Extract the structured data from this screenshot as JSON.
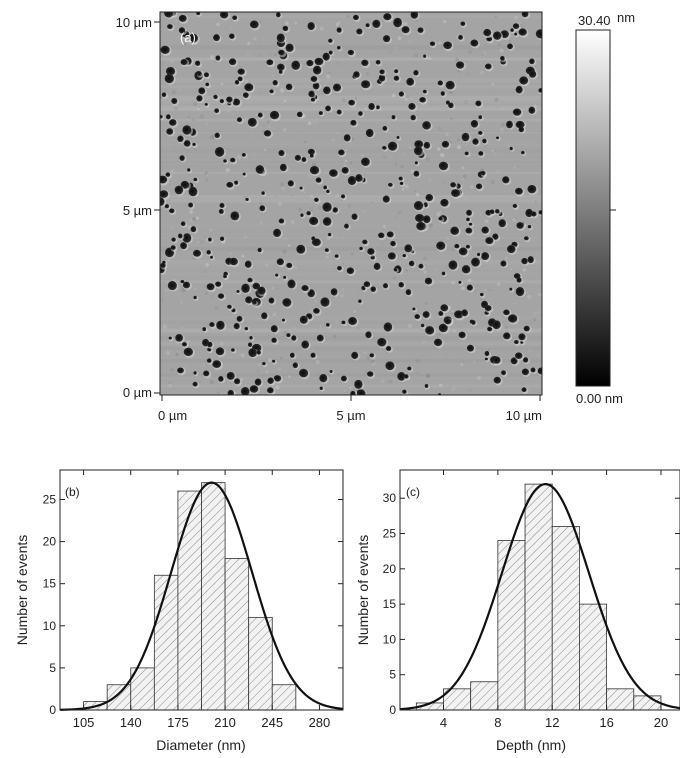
{
  "afm": {
    "panel_label": "(a)",
    "x_ticks": [
      "0 µm",
      "5 µm",
      "10 µm"
    ],
    "y_ticks": [
      "0 µm",
      "5 µm",
      "10 µm"
    ],
    "colorbar": {
      "max_value": "30.40",
      "max_unit": "nm",
      "min_label": "0.00 nm",
      "low_color": "#000000",
      "high_color": "#ffffff"
    }
  },
  "chart_data": [
    {
      "type": "bar",
      "panel_label": "(b)",
      "xlabel": "Diameter (nm)",
      "ylabel": "Number of events",
      "x_ticks": [
        105,
        140,
        175,
        210,
        245,
        280
      ],
      "y_ticks": [
        0,
        5,
        10,
        15,
        20,
        25
      ],
      "xlim": [
        87.5,
        297.5
      ],
      "ylim": [
        0,
        28.5
      ],
      "bins": [
        {
          "start": 105,
          "end": 122.5,
          "count": 1
        },
        {
          "start": 122.5,
          "end": 140,
          "count": 3
        },
        {
          "start": 140,
          "end": 157.5,
          "count": 5
        },
        {
          "start": 157.5,
          "end": 175,
          "count": 16
        },
        {
          "start": 175,
          "end": 192.5,
          "count": 26
        },
        {
          "start": 192.5,
          "end": 210,
          "count": 27
        },
        {
          "start": 210,
          "end": 227.5,
          "count": 18
        },
        {
          "start": 227.5,
          "end": 245,
          "count": 11
        },
        {
          "start": 245,
          "end": 262.5,
          "count": 3
        },
        {
          "start": 262.5,
          "end": 280,
          "count": 0
        }
      ],
      "fit": {
        "type": "gaussian",
        "amplitude": 27,
        "center": 200,
        "sigma": 30
      }
    },
    {
      "type": "bar",
      "panel_label": "(c)",
      "xlabel": "Depth (nm)",
      "ylabel": "Number of events",
      "x_ticks": [
        4,
        8,
        12,
        16,
        20
      ],
      "y_ticks": [
        0,
        5,
        10,
        15,
        20,
        25,
        30
      ],
      "xlim": [
        0.8,
        21.4
      ],
      "ylim": [
        0,
        34
      ],
      "bins": [
        {
          "start": 2,
          "end": 4,
          "count": 1
        },
        {
          "start": 4,
          "end": 6,
          "count": 3
        },
        {
          "start": 6,
          "end": 8,
          "count": 4
        },
        {
          "start": 8,
          "end": 10,
          "count": 24
        },
        {
          "start": 10,
          "end": 12,
          "count": 32
        },
        {
          "start": 12,
          "end": 14,
          "count": 26
        },
        {
          "start": 14,
          "end": 16,
          "count": 15
        },
        {
          "start": 16,
          "end": 18,
          "count": 3
        },
        {
          "start": 18,
          "end": 20,
          "count": 2
        }
      ],
      "fit": {
        "type": "gaussian",
        "amplitude": 32,
        "center": 11.5,
        "sigma": 3.2
      }
    }
  ]
}
